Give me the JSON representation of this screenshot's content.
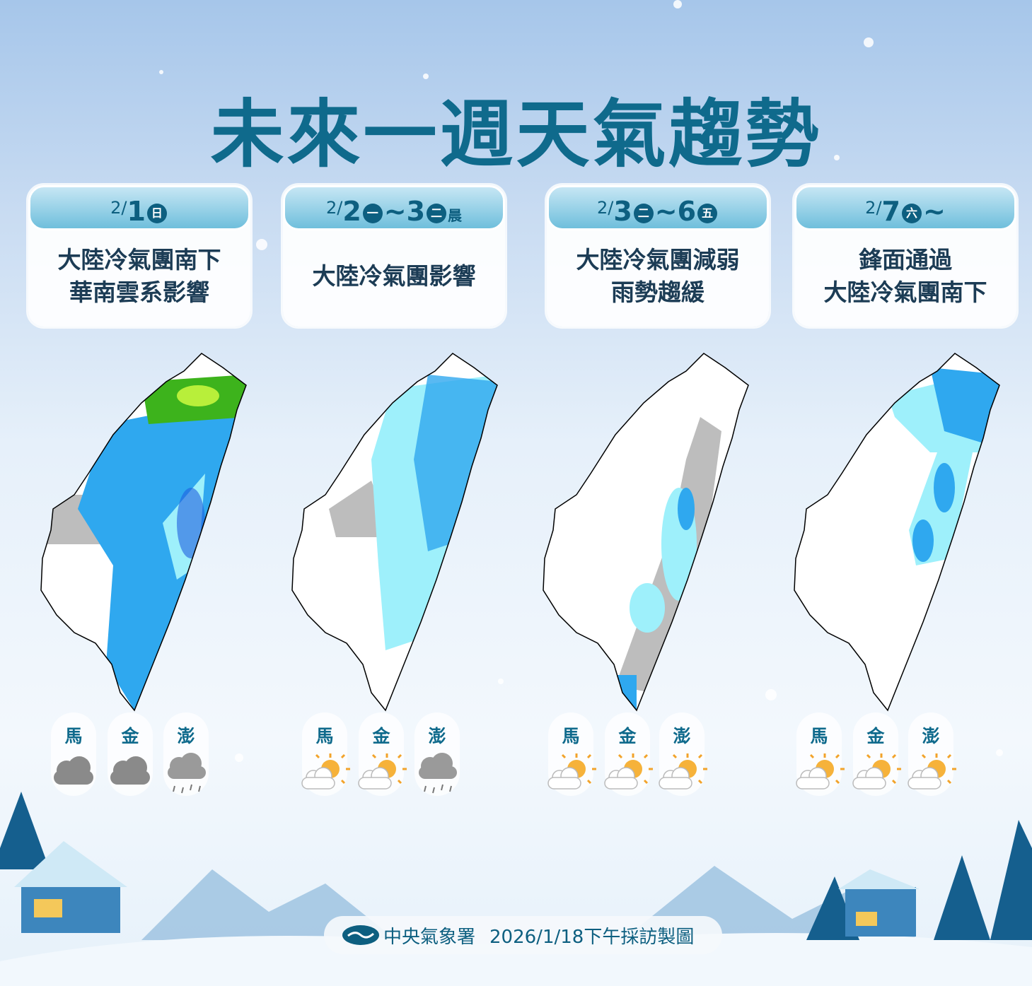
{
  "title": "未來一週天氣趨勢",
  "panels": [
    {
      "date_month": "2/",
      "date_day": "1",
      "weekday": "日",
      "tail": "",
      "line1": "大陸冷氣團南下",
      "line2": "華南雲系影響",
      "islands": [
        {
          "name": "馬",
          "icon": "cloudy-icon"
        },
        {
          "name": "金",
          "icon": "cloudy-icon"
        },
        {
          "name": "澎",
          "icon": "rain-icon"
        }
      ]
    },
    {
      "date_month": "2/",
      "date_day": "2",
      "weekday": "一",
      "range_day": "~3",
      "weekday2": "二",
      "tail": "晨",
      "line1": "大陸冷氣團影響",
      "line2": "",
      "islands": [
        {
          "name": "馬",
          "icon": "partly-sunny-icon"
        },
        {
          "name": "金",
          "icon": "partly-sunny-icon"
        },
        {
          "name": "澎",
          "icon": "rain-icon"
        }
      ]
    },
    {
      "date_month": "2/",
      "date_day": "3",
      "weekday": "二",
      "range_day": "~6",
      "weekday2": "五",
      "tail": "",
      "line1": "大陸冷氣團減弱",
      "line2": "雨勢趨緩",
      "islands": [
        {
          "name": "馬",
          "icon": "partly-sunny-icon"
        },
        {
          "name": "金",
          "icon": "partly-sunny-icon"
        },
        {
          "name": "澎",
          "icon": "partly-sunny-icon"
        }
      ]
    },
    {
      "date_month": "2/",
      "date_day": "7",
      "weekday": "六",
      "tail": "~",
      "line1": "鋒面通過",
      "line2": "大陸冷氣團南下",
      "islands": [
        {
          "name": "馬",
          "icon": "partly-sunny-icon"
        },
        {
          "name": "金",
          "icon": "partly-sunny-icon"
        },
        {
          "name": "澎",
          "icon": "partly-sunny-icon"
        }
      ]
    }
  ],
  "footer": {
    "agency": "中央氣象署",
    "note": "2026/1/18下午採訪製圖"
  },
  "colors": {
    "accent": "#0f6a8c",
    "rain_light": "#9ef0fb",
    "rain_mid": "#2fa8ef",
    "rain_heavy": "#1f5fe0",
    "rain_green": "#3db31c",
    "no_rain_gray": "#bdbdbd"
  }
}
